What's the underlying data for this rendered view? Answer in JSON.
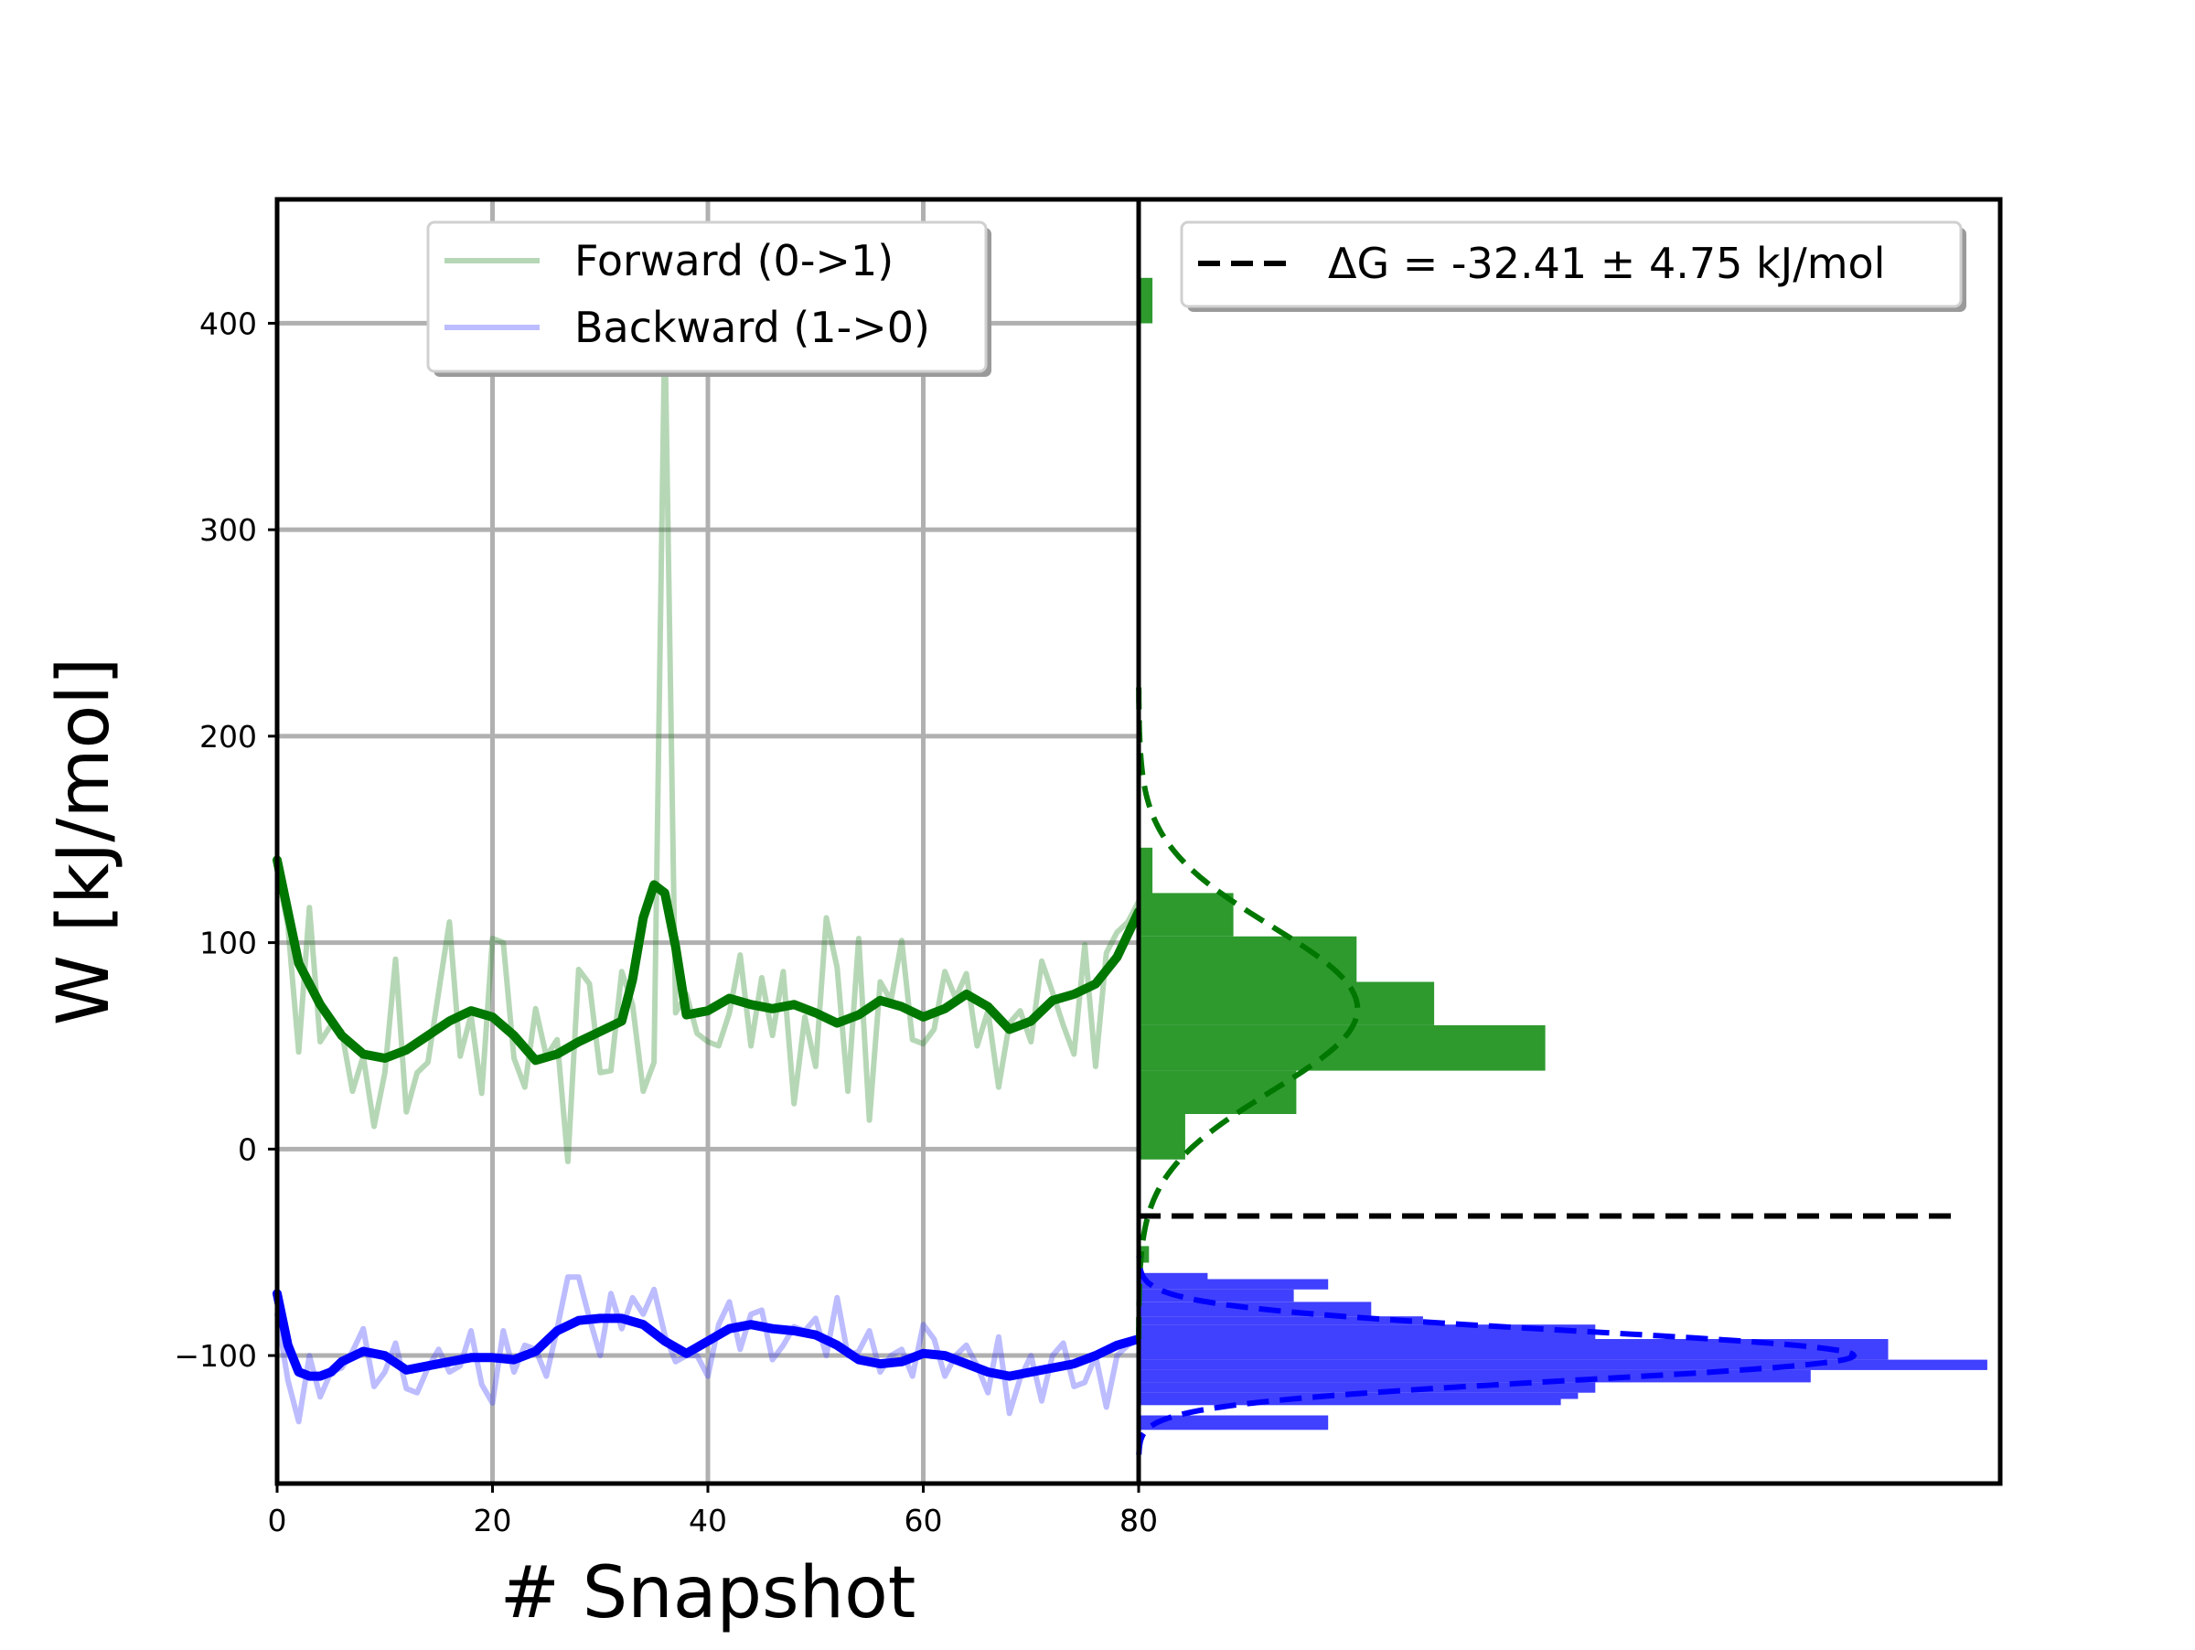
{
  "chart_data": [
    {
      "type": "line",
      "xlabel": "# Snapshot",
      "ylabel": "W [kJ/mol]",
      "xlim": [
        0,
        80
      ],
      "ylim": [
        -162,
        460
      ],
      "xticks": [
        0,
        20,
        40,
        60,
        80
      ],
      "yticks": [
        -100,
        0,
        100,
        200,
        300,
        400
      ],
      "ytick_labels": [
        "−100",
        "0",
        "100",
        "200",
        "300",
        "400"
      ],
      "grid": true,
      "legend_position": "top-center",
      "series": [
        {
          "name": "Forward (0->1)",
          "color": "#2e8b2e",
          "alpha": 0.35,
          "x": [
            0,
            1,
            2,
            3,
            4,
            5,
            6,
            7,
            8,
            9,
            10,
            11,
            12,
            13,
            14,
            15,
            16,
            17,
            18,
            19,
            20,
            21,
            22,
            23,
            24,
            25,
            26,
            27,
            28,
            29,
            30,
            31,
            32,
            33,
            34,
            35,
            36,
            37,
            38,
            39,
            40,
            41,
            42,
            43,
            44,
            45,
            46,
            47,
            48,
            49,
            50,
            51,
            52,
            53,
            54,
            55,
            56,
            57,
            58,
            59,
            60,
            61,
            62,
            63,
            64,
            65,
            66,
            67,
            68,
            69,
            70,
            71,
            72,
            73,
            74,
            75,
            76,
            77,
            78,
            79,
            80
          ],
          "values": [
            135,
            108,
            47,
            117,
            52,
            60,
            57,
            28,
            45,
            11,
            37,
            92,
            18,
            37,
            42,
            76,
            110,
            45,
            65,
            27,
            102,
            100,
            44,
            30,
            68,
            45,
            53,
            -6,
            87,
            80,
            37,
            38,
            86,
            70,
            28,
            42,
            400,
            66,
            75,
            56,
            52,
            50,
            66,
            94,
            50,
            83,
            55,
            86,
            22,
            64,
            40,
            112,
            88,
            28,
            102,
            14,
            81,
            72,
            101,
            53,
            51,
            58,
            86,
            73,
            85,
            50,
            67,
            30,
            61,
            67,
            52,
            91,
            76,
            60,
            46,
            99,
            40,
            95,
            105,
            110,
            120
          ]
        },
        {
          "name": "Backward (1->0)",
          "color": "#4040ff",
          "alpha": 0.35,
          "x": [
            0,
            1,
            2,
            3,
            4,
            5,
            6,
            7,
            8,
            9,
            10,
            11,
            12,
            13,
            14,
            15,
            16,
            17,
            18,
            19,
            20,
            21,
            22,
            23,
            24,
            25,
            26,
            27,
            28,
            29,
            30,
            31,
            32,
            33,
            34,
            35,
            36,
            37,
            38,
            39,
            40,
            41,
            42,
            43,
            44,
            45,
            46,
            47,
            48,
            49,
            50,
            51,
            52,
            53,
            54,
            55,
            56,
            57,
            58,
            59,
            60,
            61,
            62,
            63,
            64,
            65,
            66,
            67,
            68,
            69,
            70,
            71,
            72,
            73,
            74,
            75,
            76,
            77,
            78,
            79,
            80
          ],
          "values": [
            -80,
            -112,
            -132,
            -100,
            -120,
            -108,
            -106,
            -98,
            -87,
            -115,
            -108,
            -94,
            -116,
            -118,
            -106,
            -97,
            -108,
            -105,
            -88,
            -114,
            -123,
            -88,
            -108,
            -95,
            -97,
            -110,
            -87,
            -62,
            -62,
            -82,
            -100,
            -70,
            -87,
            -72,
            -80,
            -68,
            -90,
            -103,
            -100,
            -100,
            -110,
            -85,
            -74,
            -97,
            -80,
            -78,
            -102,
            -95,
            -86,
            -88,
            -82,
            -100,
            -72,
            -100,
            -98,
            -88,
            -108,
            -100,
            -97,
            -110,
            -85,
            -92,
            -110,
            -100,
            -95,
            -105,
            -118,
            -91,
            -128,
            -111,
            -100,
            -122,
            -100,
            -94,
            -115,
            -113,
            -100,
            -125,
            -100,
            -95,
            -92
          ]
        },
        {
          "name": "",
          "color": "#007700",
          "alpha": 1,
          "x": [
            0,
            2,
            4,
            6,
            8,
            10,
            12,
            14,
            16,
            18,
            20,
            22,
            24,
            26,
            28,
            30,
            32,
            33,
            34,
            35,
            36,
            37,
            38,
            40,
            42,
            44,
            46,
            48,
            50,
            52,
            54,
            56,
            58,
            60,
            62,
            64,
            66,
            68,
            70,
            72,
            74,
            76,
            78,
            80
          ],
          "values": [
            140,
            90,
            70,
            55,
            46,
            44,
            48,
            55,
            62,
            67,
            64,
            55,
            43,
            46,
            52,
            57,
            62,
            82,
            112,
            128,
            124,
            98,
            65,
            67,
            73,
            70,
            68,
            70,
            66,
            61,
            65,
            72,
            69,
            64,
            68,
            75,
            69,
            58,
            62,
            72,
            75,
            80,
            93,
            115
          ]
        },
        {
          "name": "",
          "color": "#0000ff",
          "alpha": 1,
          "x": [
            0,
            1,
            2,
            3,
            4,
            5,
            6,
            8,
            10,
            12,
            14,
            16,
            18,
            20,
            22,
            24,
            26,
            28,
            30,
            32,
            34,
            36,
            38,
            40,
            42,
            44,
            46,
            48,
            50,
            52,
            54,
            56,
            58,
            60,
            62,
            64,
            66,
            68,
            70,
            72,
            74,
            76,
            78,
            80
          ],
          "values": [
            -70,
            -95,
            -108,
            -110,
            -110,
            -108,
            -103,
            -98,
            -100,
            -107,
            -105,
            -103,
            -101,
            -101,
            -102,
            -98,
            -88,
            -83,
            -82,
            -82,
            -85,
            -93,
            -99,
            -93,
            -87,
            -85,
            -87,
            -88,
            -90,
            -95,
            -102,
            -104,
            -103,
            -99,
            -100,
            -104,
            -108,
            -110,
            -108,
            -106,
            -104,
            -100,
            -95,
            -92
          ]
        }
      ]
    },
    {
      "type": "bar",
      "orientation": "horizontal",
      "xlim": [
        0,
        1
      ],
      "ylim": [
        -162,
        460
      ],
      "xtick_labels": [
        "80"
      ],
      "legend_position": "top",
      "legend": [
        {
          "label": "ΔG = -32.41 ± 4.75 kJ/mol",
          "color": "#000000",
          "style": "dashed"
        }
      ],
      "delta_g": -32.41,
      "delta_g_error": 4.75,
      "histograms": [
        {
          "series": "Forward (0->1)",
          "color": "#2e9a2e",
          "bins": [
            {
              "y0": -55,
              "y1": -47,
              "value": 0.012
            },
            {
              "y0": -5,
              "y1": 17,
              "value": 0.054
            },
            {
              "y0": 17,
              "y1": 38,
              "value": 0.183
            },
            {
              "y0": 38,
              "y1": 60,
              "value": 0.472
            },
            {
              "y0": 60,
              "y1": 81,
              "value": 0.343
            },
            {
              "y0": 81,
              "y1": 103,
              "value": 0.253
            },
            {
              "y0": 103,
              "y1": 124,
              "value": 0.11
            },
            {
              "y0": 124,
              "y1": 146,
              "value": 0.016
            },
            {
              "y0": 400,
              "y1": 422,
              "value": 0.016
            }
          ]
        },
        {
          "series": "Backward (1->0)",
          "color": "#4040ff",
          "bins": [
            {
              "y0": -136,
              "y1": -129,
              "value": 0.22
            },
            {
              "y0": -124,
              "y1": -121,
              "value": 0.49
            },
            {
              "y0": -121,
              "y1": -118,
              "value": 0.51
            },
            {
              "y0": -118,
              "y1": -113,
              "value": 0.53
            },
            {
              "y0": -113,
              "y1": -107,
              "value": 0.78
            },
            {
              "y0": -107,
              "y1": -102,
              "value": 0.985
            },
            {
              "y0": -102,
              "y1": -96,
              "value": 0.87
            },
            {
              "y0": -96,
              "y1": -92,
              "value": 0.87
            },
            {
              "y0": -92,
              "y1": -85,
              "value": 0.53
            },
            {
              "y0": -85,
              "y1": -81,
              "value": 0.33
            },
            {
              "y0": -81,
              "y1": -74,
              "value": 0.27
            },
            {
              "y0": -74,
              "y1": -68,
              "value": 0.18
            },
            {
              "y0": -68,
              "y1": -63,
              "value": 0.22
            },
            {
              "y0": -63,
              "y1": -60,
              "value": 0.08
            }
          ]
        }
      ],
      "fits": [
        {
          "series": "Forward (0->1)",
          "color": "#007700",
          "mean": 68,
          "sd": 40,
          "peak": 0.254
        },
        {
          "series": "Backward (1->0)",
          "color": "#0000ff",
          "mean": -100,
          "sd": 12,
          "peak": 0.83
        }
      ]
    }
  ]
}
